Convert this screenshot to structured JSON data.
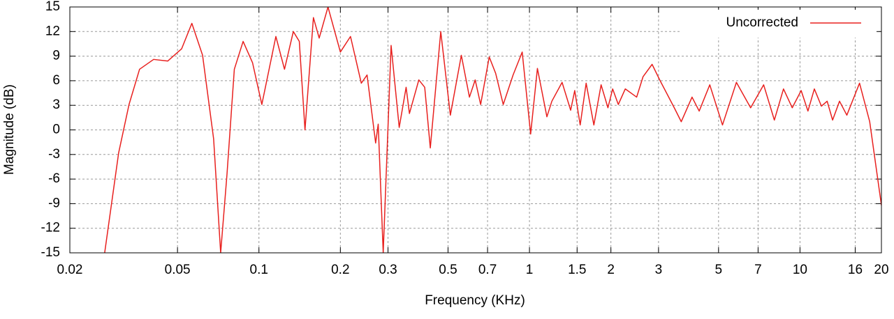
{
  "chart_data": {
    "type": "line",
    "x_label": "Frequency (KHz)",
    "y_label": "Magnitude (dB)",
    "x": [
      0.0269,
      0.0303,
      0.0331,
      0.0362,
      0.0408,
      0.046,
      0.0518,
      0.0565,
      0.0619,
      0.068,
      0.0722,
      0.0762,
      0.0811,
      0.0874,
      0.0947,
      0.1025,
      0.1155,
      0.1243,
      0.134,
      0.141,
      0.148,
      0.159,
      0.167,
      0.18,
      0.2,
      0.218,
      0.239,
      0.251,
      0.27,
      0.276,
      0.288,
      0.308,
      0.33,
      0.35,
      0.36,
      0.39,
      0.41,
      0.43,
      0.47,
      0.51,
      0.56,
      0.6,
      0.63,
      0.66,
      0.71,
      0.75,
      0.8,
      0.87,
      0.94,
      1.01,
      1.07,
      1.16,
      1.21,
      1.32,
      1.42,
      1.47,
      1.54,
      1.62,
      1.73,
      1.84,
      1.95,
      2.03,
      2.13,
      2.26,
      2.49,
      2.63,
      2.84,
      3.03,
      3.43,
      3.64,
      3.99,
      4.24,
      4.64,
      5.17,
      5.82,
      6.57,
      7.34,
      8.04,
      8.69,
      9.36,
      10.1,
      10.7,
      11.3,
      12.0,
      12.6,
      13.2,
      14.0,
      14.9,
      16.6,
      18.1,
      20.0
    ],
    "series": [
      {
        "name": "Uncorrected",
        "color": "#e8201e",
        "values": [
          -15,
          -2.8,
          3.1,
          7.4,
          8.6,
          8.4,
          9.9,
          13.0,
          9.1,
          -1.1,
          -15,
          -5.4,
          7.4,
          10.8,
          8.2,
          3.1,
          11.4,
          7.4,
          12.0,
          10.8,
          0.0,
          13.7,
          11.2,
          15,
          9.5,
          11.4,
          5.7,
          6.7,
          -1.6,
          0.7,
          -15,
          10.3,
          0.3,
          5.2,
          2.0,
          6.1,
          5.2,
          -2.2,
          12.0,
          1.8,
          9.1,
          4.0,
          6.1,
          3.1,
          8.9,
          6.9,
          3.1,
          6.7,
          9.5,
          -0.5,
          7.5,
          1.6,
          3.5,
          5.8,
          2.4,
          4.8,
          0.6,
          5.7,
          0.6,
          5.5,
          2.7,
          5.0,
          3.1,
          5.0,
          4.0,
          6.5,
          8.0,
          6.1,
          2.7,
          1.0,
          4.0,
          2.3,
          5.5,
          0.6,
          5.8,
          2.7,
          5.5,
          1.2,
          5.0,
          2.7,
          4.8,
          2.3,
          5.0,
          2.9,
          3.5,
          1.2,
          3.5,
          1.8,
          5.7,
          1.0,
          -9.2
        ]
      }
    ],
    "xlim": [
      0.02,
      20
    ],
    "ylim": [
      -15,
      15
    ],
    "log_x": true,
    "grid": true,
    "legend": "upper right",
    "xticks": [
      0.02,
      0.05,
      0.1,
      0.2,
      0.3,
      0.5,
      0.7,
      1,
      1.5,
      2,
      3,
      5,
      7,
      10,
      16,
      20
    ],
    "yticks": [
      -15,
      -12,
      -9,
      -6,
      -3,
      0,
      3,
      6,
      9,
      12,
      15
    ]
  }
}
